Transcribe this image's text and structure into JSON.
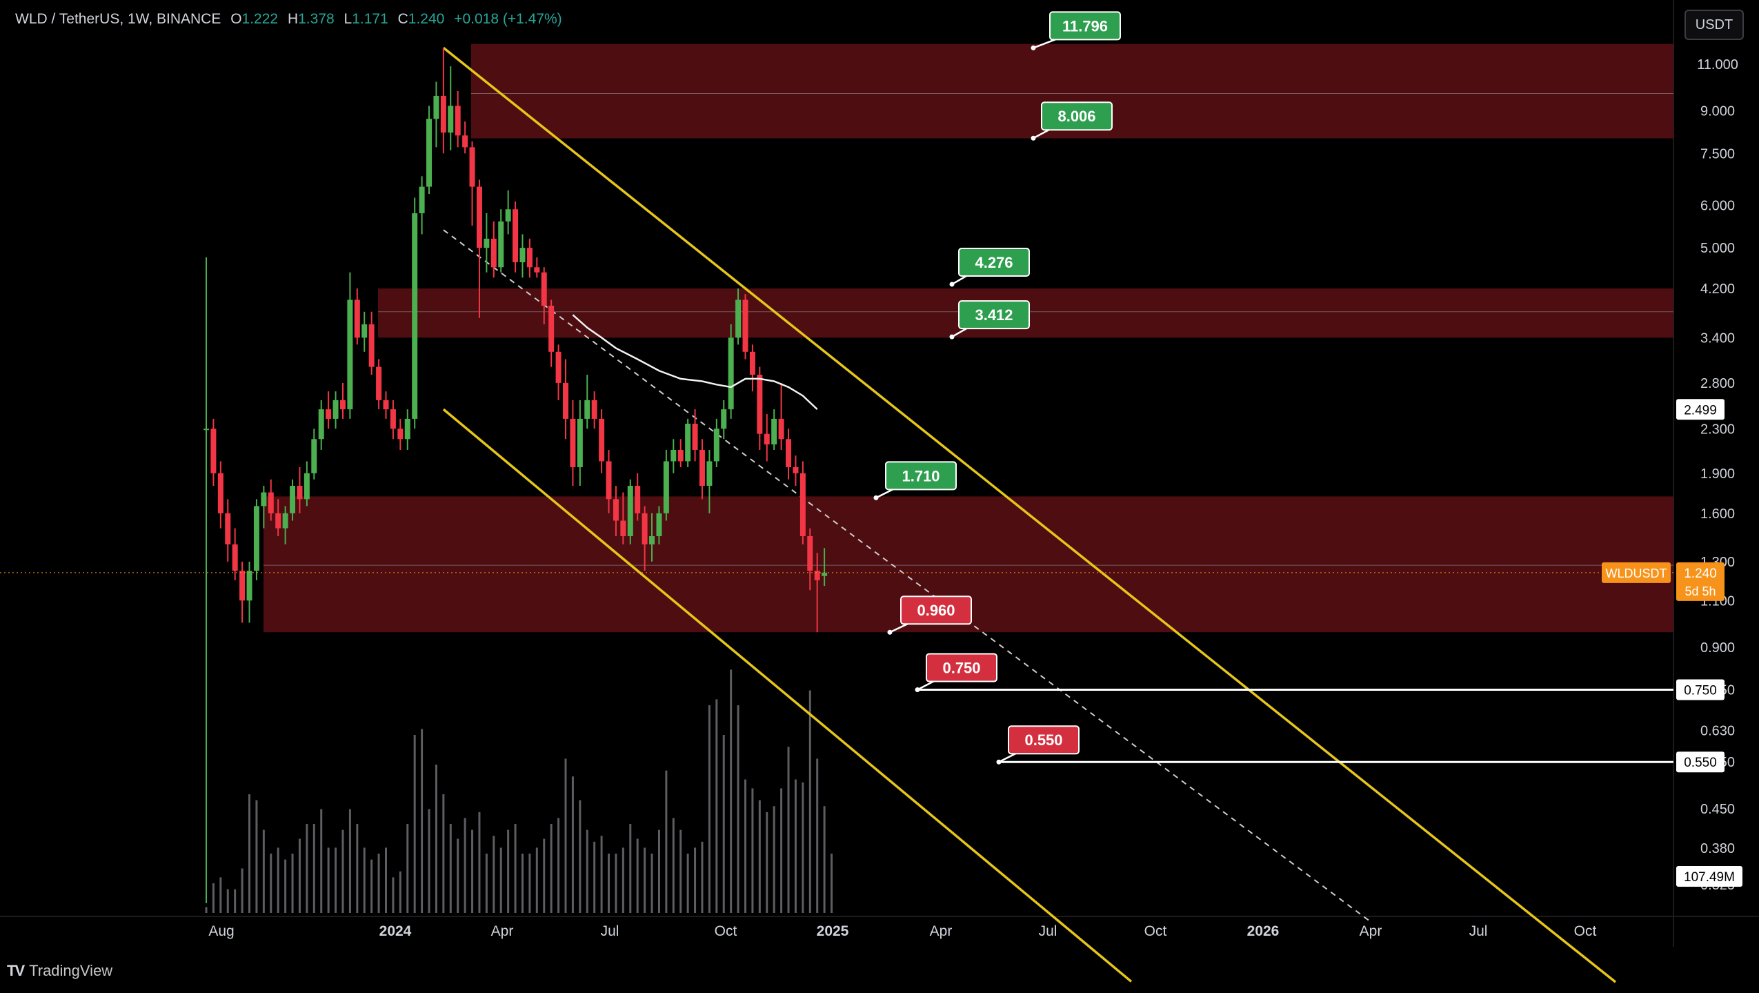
{
  "header": {
    "symbol": "WLD / TetherUS, 1W, BINANCE",
    "o_label": "O",
    "o_value": "1.222",
    "h_label": "H",
    "h_value": "1.378",
    "l_label": "L",
    "l_value": "1.171",
    "c_label": "C",
    "c_value": "1.240",
    "change": "+0.018 (+1.47%)"
  },
  "currency_button": "USDT",
  "footer": {
    "logo_text": "TV",
    "brand": "TradingView"
  },
  "colors": {
    "background": "#000000",
    "bull": "#4caf50",
    "bear": "#f23645",
    "zone_fill": "#5a0f14",
    "channel": "#e6c619",
    "target_label_bg": "#2e9e4f",
    "support_label_bg": "#d32f3f",
    "price_tag": "#f7931a"
  },
  "chart_data": {
    "type": "candlestick",
    "title": "",
    "symbol": "WLD / TetherUS",
    "timeframe": "1W",
    "exchange": "BINANCE",
    "y_scale": "log",
    "ylim": [
      0.3,
      13.5
    ],
    "ylabel": "USDT",
    "x_axis_labels": [
      "Aug",
      "2024",
      "Apr",
      "Jul",
      "Oct",
      "2025",
      "Apr",
      "Jul",
      "Oct",
      "2026",
      "Apr",
      "Jul",
      "Oct"
    ],
    "y_axis_labels": [
      "11.000",
      "9.000",
      "7.500",
      "6.000",
      "5.000",
      "4.200",
      "3.400",
      "2.800",
      "2.300",
      "1.900",
      "1.600",
      "1.300",
      "1.100",
      "0.900",
      "0.750",
      "0.630",
      "0.550",
      "0.450",
      "0.380",
      "0.325"
    ],
    "ohlc": [
      {
        "o": 2.3,
        "h": 4.8,
        "l": 0.3,
        "c": 2.3
      },
      {
        "o": 2.3,
        "h": 2.4,
        "l": 1.8,
        "c": 1.9
      },
      {
        "o": 1.9,
        "h": 2.0,
        "l": 1.5,
        "c": 1.6
      },
      {
        "o": 1.6,
        "h": 1.7,
        "l": 1.3,
        "c": 1.4
      },
      {
        "o": 1.4,
        "h": 1.5,
        "l": 1.2,
        "c": 1.25
      },
      {
        "o": 1.25,
        "h": 1.3,
        "l": 1.0,
        "c": 1.1
      },
      {
        "o": 1.1,
        "h": 1.3,
        "l": 1.0,
        "c": 1.25
      },
      {
        "o": 1.25,
        "h": 1.7,
        "l": 1.2,
        "c": 1.65
      },
      {
        "o": 1.65,
        "h": 1.8,
        "l": 1.5,
        "c": 1.75
      },
      {
        "o": 1.75,
        "h": 1.85,
        "l": 1.55,
        "c": 1.6
      },
      {
        "o": 1.6,
        "h": 1.7,
        "l": 1.45,
        "c": 1.5
      },
      {
        "o": 1.5,
        "h": 1.65,
        "l": 1.4,
        "c": 1.6
      },
      {
        "o": 1.6,
        "h": 1.85,
        "l": 1.55,
        "c": 1.8
      },
      {
        "o": 1.8,
        "h": 1.95,
        "l": 1.6,
        "c": 1.7
      },
      {
        "o": 1.7,
        "h": 2.0,
        "l": 1.65,
        "c": 1.9
      },
      {
        "o": 1.9,
        "h": 2.3,
        "l": 1.85,
        "c": 2.2
      },
      {
        "o": 2.2,
        "h": 2.6,
        "l": 2.1,
        "c": 2.5
      },
      {
        "o": 2.5,
        "h": 2.7,
        "l": 2.3,
        "c": 2.4
      },
      {
        "o": 2.4,
        "h": 2.7,
        "l": 2.3,
        "c": 2.6
      },
      {
        "o": 2.6,
        "h": 2.8,
        "l": 2.4,
        "c": 2.5
      },
      {
        "o": 2.5,
        "h": 4.5,
        "l": 2.4,
        "c": 4.0
      },
      {
        "o": 4.0,
        "h": 4.2,
        "l": 3.3,
        "c": 3.4
      },
      {
        "o": 3.4,
        "h": 3.8,
        "l": 3.2,
        "c": 3.6
      },
      {
        "o": 3.6,
        "h": 3.8,
        "l": 2.9,
        "c": 3.0
      },
      {
        "o": 3.0,
        "h": 3.1,
        "l": 2.5,
        "c": 2.6
      },
      {
        "o": 2.6,
        "h": 2.7,
        "l": 2.4,
        "c": 2.5
      },
      {
        "o": 2.5,
        "h": 2.6,
        "l": 2.2,
        "c": 2.3
      },
      {
        "o": 2.3,
        "h": 2.4,
        "l": 2.1,
        "c": 2.2
      },
      {
        "o": 2.2,
        "h": 2.5,
        "l": 2.1,
        "c": 2.4
      },
      {
        "o": 2.4,
        "h": 6.2,
        "l": 2.3,
        "c": 5.8
      },
      {
        "o": 5.8,
        "h": 6.8,
        "l": 5.3,
        "c": 6.5
      },
      {
        "o": 6.5,
        "h": 9.2,
        "l": 6.3,
        "c": 8.7
      },
      {
        "o": 8.7,
        "h": 10.2,
        "l": 7.7,
        "c": 9.6
      },
      {
        "o": 9.6,
        "h": 11.8,
        "l": 7.5,
        "c": 8.2
      },
      {
        "o": 8.2,
        "h": 10.9,
        "l": 7.6,
        "c": 9.2
      },
      {
        "o": 9.2,
        "h": 9.8,
        "l": 7.7,
        "c": 8.1
      },
      {
        "o": 8.1,
        "h": 8.6,
        "l": 7.5,
        "c": 7.7
      },
      {
        "o": 7.7,
        "h": 7.9,
        "l": 5.5,
        "c": 6.5
      },
      {
        "o": 6.5,
        "h": 6.7,
        "l": 3.7,
        "c": 5.0
      },
      {
        "o": 5.0,
        "h": 5.8,
        "l": 4.5,
        "c": 5.2
      },
      {
        "o": 5.2,
        "h": 5.6,
        "l": 4.4,
        "c": 4.6
      },
      {
        "o": 4.6,
        "h": 5.9,
        "l": 4.5,
        "c": 5.6
      },
      {
        "o": 5.6,
        "h": 6.4,
        "l": 5.3,
        "c": 5.9
      },
      {
        "o": 5.9,
        "h": 6.1,
        "l": 4.5,
        "c": 4.7
      },
      {
        "o": 4.7,
        "h": 5.3,
        "l": 4.4,
        "c": 5.0
      },
      {
        "o": 5.0,
        "h": 5.2,
        "l": 4.4,
        "c": 4.6
      },
      {
        "o": 4.6,
        "h": 4.8,
        "l": 4.4,
        "c": 4.5
      },
      {
        "o": 4.5,
        "h": 4.6,
        "l": 3.6,
        "c": 3.9
      },
      {
        "o": 3.9,
        "h": 4.0,
        "l": 3.0,
        "c": 3.2
      },
      {
        "o": 3.2,
        "h": 3.3,
        "l": 2.6,
        "c": 2.8
      },
      {
        "o": 2.8,
        "h": 3.1,
        "l": 2.2,
        "c": 2.4
      },
      {
        "o": 2.4,
        "h": 2.6,
        "l": 1.8,
        "c": 1.95
      },
      {
        "o": 1.95,
        "h": 2.6,
        "l": 1.8,
        "c": 2.4
      },
      {
        "o": 2.4,
        "h": 2.9,
        "l": 2.3,
        "c": 2.6
      },
      {
        "o": 2.6,
        "h": 2.7,
        "l": 2.3,
        "c": 2.4
      },
      {
        "o": 2.4,
        "h": 2.5,
        "l": 1.9,
        "c": 2.0
      },
      {
        "o": 2.0,
        "h": 2.1,
        "l": 1.6,
        "c": 1.7
      },
      {
        "o": 1.7,
        "h": 1.8,
        "l": 1.45,
        "c": 1.55
      },
      {
        "o": 1.55,
        "h": 1.75,
        "l": 1.4,
        "c": 1.45
      },
      {
        "o": 1.45,
        "h": 1.85,
        "l": 1.4,
        "c": 1.8
      },
      {
        "o": 1.8,
        "h": 1.9,
        "l": 1.55,
        "c": 1.6
      },
      {
        "o": 1.6,
        "h": 1.65,
        "l": 1.25,
        "c": 1.4
      },
      {
        "o": 1.4,
        "h": 1.6,
        "l": 1.3,
        "c": 1.45
      },
      {
        "o": 1.45,
        "h": 1.65,
        "l": 1.4,
        "c": 1.6
      },
      {
        "o": 1.6,
        "h": 2.1,
        "l": 1.55,
        "c": 2.0
      },
      {
        "o": 2.0,
        "h": 2.2,
        "l": 1.9,
        "c": 2.1
      },
      {
        "o": 2.1,
        "h": 2.2,
        "l": 1.95,
        "c": 2.0
      },
      {
        "o": 2.0,
        "h": 2.4,
        "l": 1.95,
        "c": 2.35
      },
      {
        "o": 2.35,
        "h": 2.5,
        "l": 2.0,
        "c": 2.1
      },
      {
        "o": 2.1,
        "h": 2.2,
        "l": 1.7,
        "c": 1.8
      },
      {
        "o": 1.8,
        "h": 2.1,
        "l": 1.6,
        "c": 2.0
      },
      {
        "o": 2.0,
        "h": 2.4,
        "l": 1.95,
        "c": 2.3
      },
      {
        "o": 2.3,
        "h": 2.6,
        "l": 2.2,
        "c": 2.5
      },
      {
        "o": 2.5,
        "h": 3.6,
        "l": 2.4,
        "c": 3.4
      },
      {
        "o": 3.4,
        "h": 4.2,
        "l": 3.3,
        "c": 4.0
      },
      {
        "o": 4.0,
        "h": 4.1,
        "l": 3.1,
        "c": 3.2
      },
      {
        "o": 3.2,
        "h": 3.3,
        "l": 2.7,
        "c": 2.9
      },
      {
        "o": 2.9,
        "h": 3.0,
        "l": 2.1,
        "c": 2.25
      },
      {
        "o": 2.25,
        "h": 2.45,
        "l": 2.0,
        "c": 2.15
      },
      {
        "o": 2.15,
        "h": 2.5,
        "l": 2.1,
        "c": 2.4
      },
      {
        "o": 2.4,
        "h": 2.8,
        "l": 2.1,
        "c": 2.2
      },
      {
        "o": 2.2,
        "h": 2.3,
        "l": 1.85,
        "c": 1.95
      },
      {
        "o": 1.95,
        "h": 2.05,
        "l": 1.8,
        "c": 1.9
      },
      {
        "o": 1.9,
        "h": 2.0,
        "l": 1.4,
        "c": 1.45
      },
      {
        "o": 1.45,
        "h": 1.5,
        "l": 1.15,
        "c": 1.25
      },
      {
        "o": 1.25,
        "h": 1.35,
        "l": 0.96,
        "c": 1.2
      },
      {
        "o": 1.222,
        "h": 1.378,
        "l": 1.171,
        "c": 1.24
      }
    ],
    "volume": [
      2,
      10,
      12,
      8,
      8,
      15,
      40,
      38,
      28,
      20,
      22,
      18,
      20,
      25,
      30,
      30,
      35,
      22,
      22,
      28,
      35,
      30,
      22,
      18,
      20,
      22,
      12,
      14,
      30,
      60,
      62,
      35,
      50,
      40,
      30,
      25,
      32,
      28,
      34,
      20,
      26,
      22,
      28,
      30,
      20,
      20,
      22,
      25,
      30,
      32,
      52,
      46,
      38,
      28,
      24,
      26,
      20,
      20,
      22,
      30,
      25,
      22,
      20,
      28,
      48,
      32,
      28,
      20,
      22,
      24,
      70,
      72,
      60,
      82,
      70,
      45,
      42,
      38,
      34,
      36,
      42,
      56,
      45,
      44,
      75,
      52,
      36,
      20
    ],
    "volume_label": "107.49M",
    "moving_average": [
      {
        "i": 51,
        "v": 3.75
      },
      {
        "i": 53,
        "v": 3.55
      },
      {
        "i": 55,
        "v": 3.4
      },
      {
        "i": 57,
        "v": 3.25
      },
      {
        "i": 60,
        "v": 3.1
      },
      {
        "i": 63,
        "v": 2.95
      },
      {
        "i": 66,
        "v": 2.85
      },
      {
        "i": 69,
        "v": 2.82
      },
      {
        "i": 71,
        "v": 2.78
      },
      {
        "i": 73,
        "v": 2.75
      },
      {
        "i": 75,
        "v": 2.85
      },
      {
        "i": 77,
        "v": 2.85
      },
      {
        "i": 79,
        "v": 2.82
      },
      {
        "i": 81,
        "v": 2.75
      },
      {
        "i": 83,
        "v": 2.65
      },
      {
        "i": 85,
        "v": 2.5
      }
    ],
    "ma_last_value": "2.499",
    "zones": [
      {
        "top": 12.0,
        "bottom": 8.0
      },
      {
        "top": 4.2,
        "bottom": 3.4
      },
      {
        "top": 1.72,
        "bottom": 0.96
      }
    ],
    "zone_midlines": [
      9.7,
      3.8,
      1.28
    ],
    "target_labels": [
      {
        "text": "11.796",
        "value": 11.796,
        "kind": "target"
      },
      {
        "text": "8.006",
        "value": 8.006,
        "kind": "target"
      },
      {
        "text": "4.276",
        "value": 4.276,
        "kind": "target"
      },
      {
        "text": "3.412",
        "value": 3.412,
        "kind": "target"
      },
      {
        "text": "1.710",
        "value": 1.71,
        "kind": "target"
      },
      {
        "text": "0.960",
        "value": 0.96,
        "kind": "support"
      },
      {
        "text": "0.750",
        "value": 0.75,
        "kind": "support"
      },
      {
        "text": "0.550",
        "value": 0.55,
        "kind": "support"
      }
    ],
    "horizontal_levels": [
      {
        "value": 0.75,
        "label": "0.750"
      },
      {
        "value": 0.55,
        "label": "0.550"
      }
    ],
    "channel": {
      "upper_start": {
        "i": 33,
        "v": 11.8
      },
      "upper_mid": {
        "i": 75,
        "v": 4.2
      },
      "lower_start": {
        "i": 33,
        "v": 2.5
      },
      "lower_mid": {
        "i": 60,
        "v": 1.25
      },
      "midline_start": {
        "i": 33,
        "v": 5.4
      },
      "midline_mid": {
        "i": 60,
        "v": 2.9
      }
    },
    "current_price": {
      "symbol": "WLDUSDT",
      "value": "1.240",
      "countdown": "5d 5h"
    },
    "grid": false,
    "legend": "none"
  }
}
